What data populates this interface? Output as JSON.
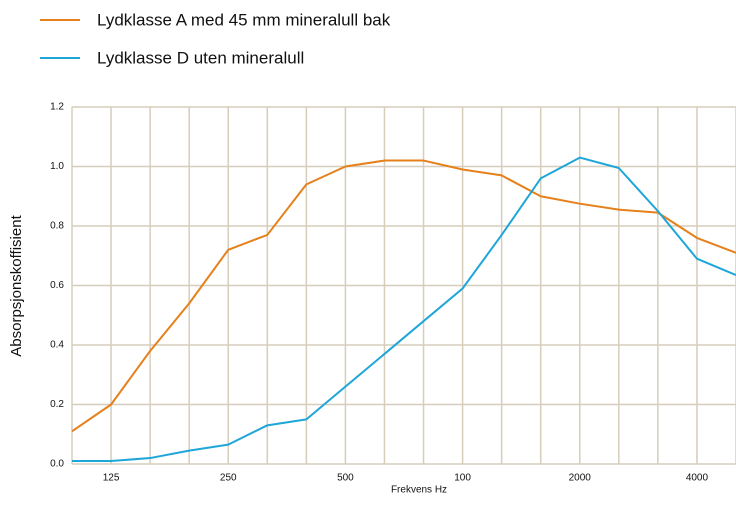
{
  "chart_data": {
    "type": "line",
    "xlabel": "Frekvens Hz",
    "ylabel": "Absorpsjonskoffisient",
    "categories": [
      null,
      "125",
      null,
      null,
      "250",
      null,
      null,
      "500",
      null,
      null,
      "100",
      null,
      null,
      "2000",
      null,
      null,
      "4000",
      null
    ],
    "series": [
      {
        "name": "Lydklasse A med 45 mm mineralull bak",
        "color": "#e5801a",
        "values": [
          0.11,
          0.2,
          0.38,
          0.54,
          0.72,
          0.77,
          0.94,
          1.0,
          1.02,
          1.02,
          0.99,
          0.97,
          0.9,
          0.875,
          0.855,
          0.845,
          0.76,
          0.71
        ]
      },
      {
        "name": "Lydklasse D uten mineralull",
        "color": "#1ea6d9",
        "values": [
          0.01,
          0.01,
          0.02,
          0.045,
          0.065,
          0.13,
          0.15,
          0.26,
          0.37,
          0.48,
          0.59,
          0.77,
          0.96,
          1.03,
          0.995,
          0.85,
          0.69,
          0.635
        ]
      }
    ],
    "ylim": [
      0,
      1.2
    ],
    "yticks": [
      {
        "value": 0,
        "label": "0.0"
      },
      0.2,
      0.4,
      0.6,
      0.8,
      {
        "value": 1,
        "label": "1.0"
      },
      1.2
    ],
    "grid": true
  }
}
